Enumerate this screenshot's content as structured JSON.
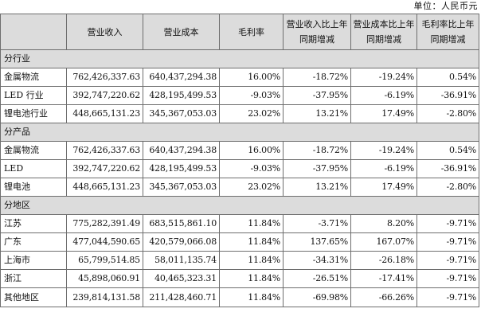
{
  "unit_label": "单位：人民币元",
  "headers": [
    "",
    "营业收入",
    "营业成本",
    "毛利率",
    "营业收入比上年同期增减",
    "营业成本比上年同期增减",
    "毛利率比上年同期增减"
  ],
  "sections": [
    {
      "title": "分行业",
      "rows": [
        [
          "金属物流",
          "762,426,337.63",
          "640,437,294.38",
          "16.00%",
          "-18.72%",
          "-19.24%",
          "0.54%"
        ],
        [
          "LED 行业",
          "392,747,220.62",
          "428,195,499.53",
          "-9.03%",
          "-37.95%",
          "-6.19%",
          "-36.91%"
        ],
        [
          "锂电池行业",
          "448,665,131.23",
          "345,367,053.03",
          "23.02%",
          "13.21%",
          "17.49%",
          "-2.80%"
        ]
      ]
    },
    {
      "title": "分产品",
      "rows": [
        [
          "金属物流",
          "762,426,337.63",
          "640,437,294.38",
          "16.00%",
          "-18.72%",
          "-19.24%",
          "0.54%"
        ],
        [
          "LED",
          "392,747,220.62",
          "428,195,499.53",
          "-9.03%",
          "-37.95%",
          "-6.19%",
          "-36.91%"
        ],
        [
          "锂电池",
          "448,665,131.23",
          "345,367,053.03",
          "23.02%",
          "13.21%",
          "17.49%",
          "-2.80%"
        ]
      ]
    },
    {
      "title": "分地区",
      "rows": [
        [
          "江苏",
          "775,282,391.49",
          "683,515,861.10",
          "11.84%",
          "-3.71%",
          "8.20%",
          "-9.71%"
        ],
        [
          "广东",
          "477,044,590.65",
          "420,579,066.08",
          "11.84%",
          "137.65%",
          "167.07%",
          "-9.71%"
        ],
        [
          "上海市",
          "65,799,514.85",
          "58,011,135.74",
          "11.84%",
          "-34.31%",
          "-26.18%",
          "-9.71%"
        ],
        [
          "浙江",
          "45,898,060.91",
          "40,465,323.31",
          "11.84%",
          "-26.51%",
          "-17.41%",
          "-9.71%"
        ],
        [
          "其他地区",
          "239,814,131.58",
          "211,428,460.71",
          "11.84%",
          "-69.98%",
          "-66.26%",
          "-9.71%"
        ]
      ]
    }
  ]
}
